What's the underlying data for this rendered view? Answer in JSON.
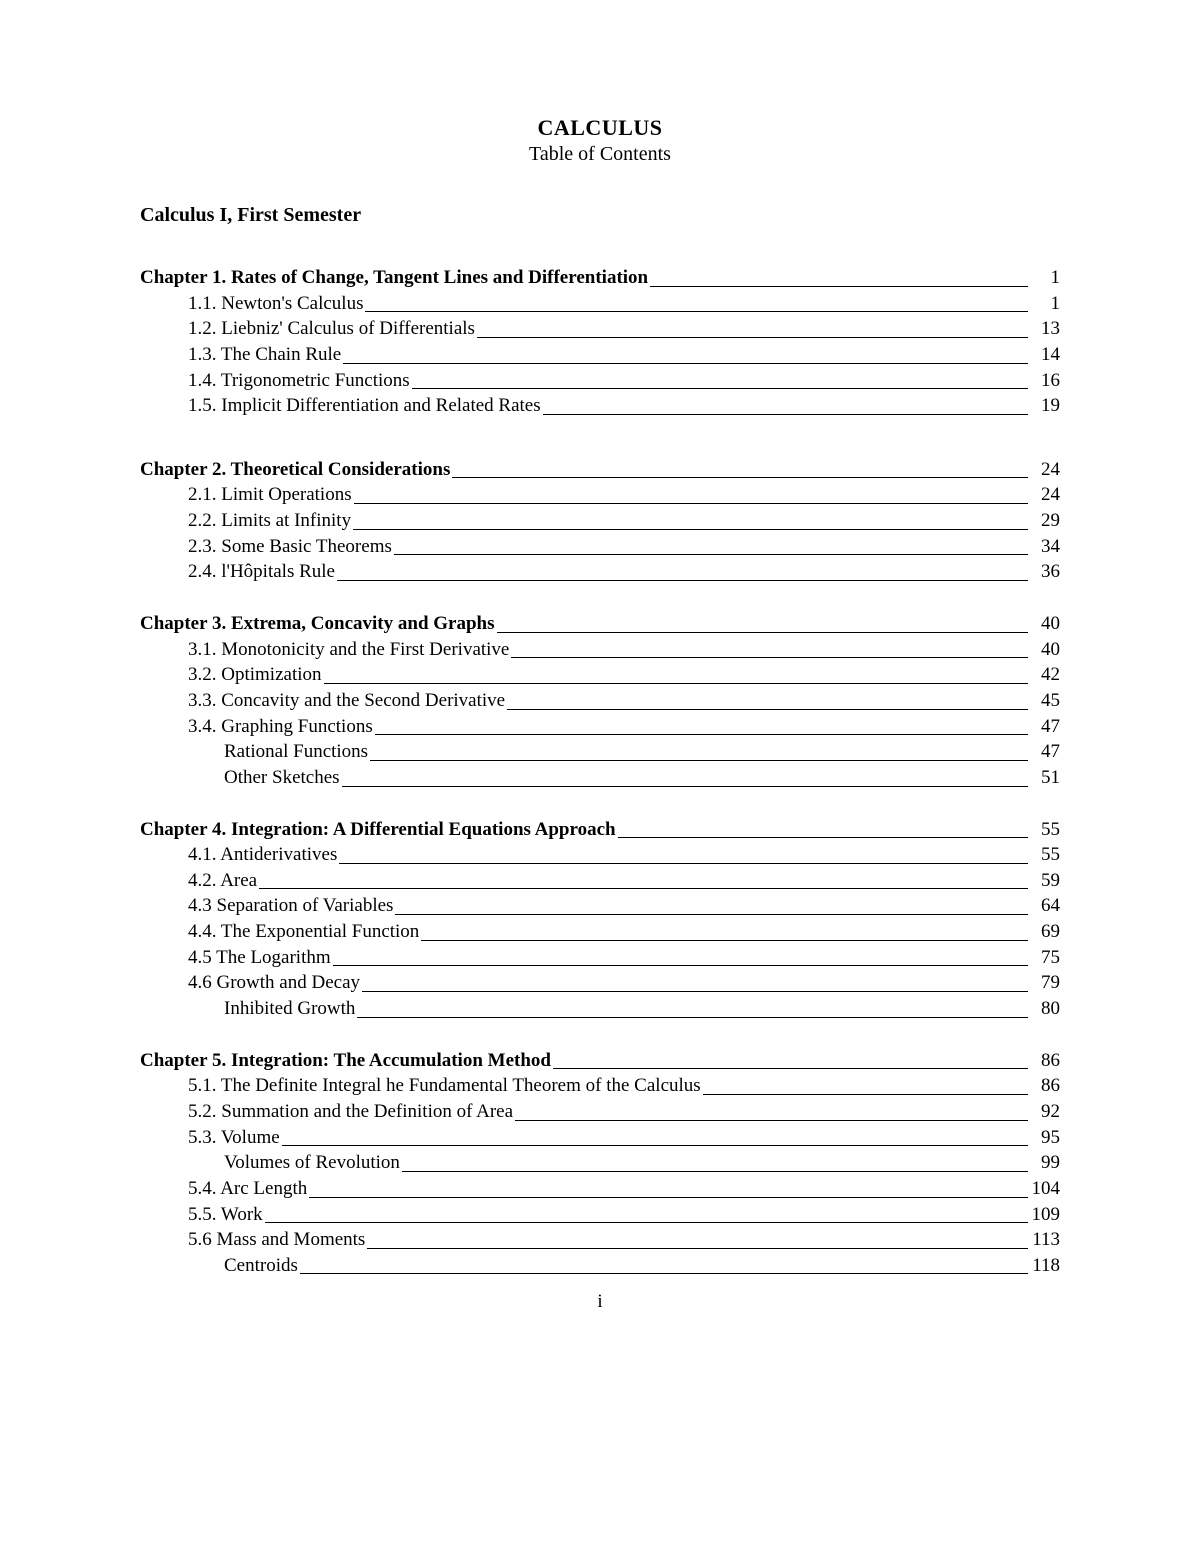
{
  "colors": {
    "background": "#ffffff",
    "text": "#000000",
    "leader": "#000000"
  },
  "typography": {
    "body_font": "Georgia, 'Times New Roman', serif",
    "title_fontsize": 22,
    "body_fontsize": 19,
    "title_weight": "bold",
    "chapter_weight": "bold"
  },
  "header": {
    "title": "CALCULUS",
    "subtitle": "Table of Contents"
  },
  "semester": "Calculus I, First Semester",
  "chapters": [
    {
      "title": "Chapter 1. Rates of Change, Tangent Lines and Differentiation",
      "page": "1",
      "tight": false,
      "sections": [
        {
          "label": "1.1. Newton's Calculus",
          "page": "1",
          "level": "section"
        },
        {
          "label": "1.2. Liebniz' Calculus of Differentials",
          "page": "13",
          "level": "section"
        },
        {
          "label": "1.3. The Chain Rule",
          "page": "14",
          "level": "section"
        },
        {
          "label": "1.4. Trigonometric Functions",
          "page": "16",
          "level": "section"
        },
        {
          "label": "1.5. Implicit Differentiation and Related Rates",
          "page": "19",
          "level": "section"
        }
      ]
    },
    {
      "title": "Chapter 2. Theoretical Considerations",
      "page": "24",
      "tight": false,
      "sections": [
        {
          "label": "2.1. Limit Operations",
          "page": "24",
          "level": "section"
        },
        {
          "label": "2.2. Limits at Infinity",
          "page": "29",
          "level": "section"
        },
        {
          "label": "2.3. Some Basic Theorems",
          "page": "34",
          "level": "section"
        },
        {
          "label": "2.4. l'Hôpitals Rule",
          "page": "36",
          "level": "section"
        }
      ]
    },
    {
      "title": "Chapter 3. Extrema, Concavity and Graphs",
      "page": "40",
      "tight": true,
      "sections": [
        {
          "label": "3.1. Monotonicity and the First Derivative",
          "page": "40",
          "level": "section"
        },
        {
          "label": "3.2. Optimization",
          "page": "42",
          "level": "section"
        },
        {
          "label": "3.3. Concavity and the Second Derivative",
          "page": "45",
          "level": "section"
        },
        {
          "label": "3.4. Graphing Functions",
          "page": "47",
          "level": "section"
        },
        {
          "label": "Rational Functions",
          "page": "47",
          "level": "subitem"
        },
        {
          "label": "Other Sketches",
          "page": "51",
          "level": "subitem"
        }
      ]
    },
    {
      "title": "Chapter 4. Integration: A Differential Equations Approach",
      "page": "55",
      "tight": true,
      "sections": [
        {
          "label": "4.1. Antiderivatives",
          "page": "55",
          "level": "section"
        },
        {
          "label": "4.2. Area",
          "page": "59",
          "level": "section"
        },
        {
          "label": "4.3 Separation of Variables",
          "page": "64",
          "level": "section"
        },
        {
          "label": "4.4. The Exponential Function",
          "page": "69",
          "level": "section"
        },
        {
          "label": "4.5 The Logarithm",
          "page": "75",
          "level": "section"
        },
        {
          "label": "4.6 Growth and Decay",
          "page": "79",
          "level": "section"
        },
        {
          "label": "Inhibited Growth",
          "page": "80",
          "level": "subitem"
        }
      ]
    },
    {
      "title": "Chapter 5. Integration: The Accumulation Method",
      "page": "86",
      "tight": true,
      "sections": [
        {
          "label": "5.1. The Definite Integral he Fundamental Theorem of the Calculus",
          "page": "86",
          "level": "section"
        },
        {
          "label": "5.2. Summation and the Definition of Area",
          "page": "92",
          "level": "section"
        },
        {
          "label": "5.3. Volume",
          "page": "95",
          "level": "section"
        },
        {
          "label": "Volumes of Revolution",
          "page": "99",
          "level": "subitem"
        },
        {
          "label": "5.4. Arc Length",
          "page": "104",
          "level": "section"
        },
        {
          "label": "5.5. Work",
          "page": "109",
          "level": "section"
        },
        {
          "label": "5.6 Mass and Moments",
          "page": "113",
          "level": "section"
        },
        {
          "label": "Centroids",
          "page": "118",
          "level": "subitem"
        }
      ]
    }
  ],
  "footer": {
    "page_number": "i"
  }
}
